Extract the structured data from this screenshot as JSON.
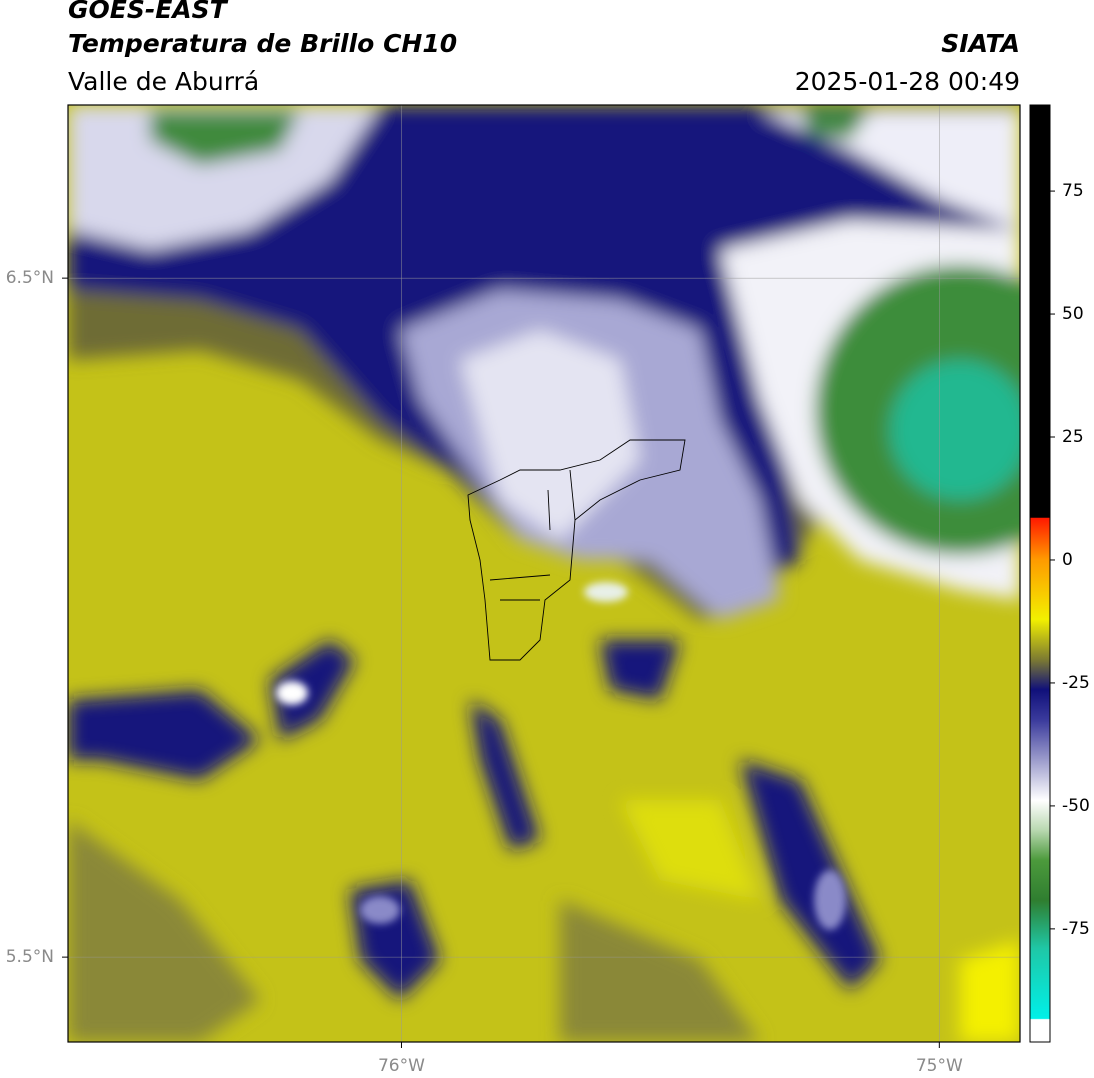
{
  "header": {
    "satellite": "GOES-EAST",
    "product": "Temperatura de Brillo CH10",
    "region": "Valle de Aburrá",
    "source": "SIATA",
    "datetime": "2025-01-28 00:49"
  },
  "map": {
    "xlim": [
      -76.62,
      -74.85
    ],
    "ylim": [
      5.375,
      6.755
    ],
    "xticks": [
      {
        "value": -76,
        "label": "76°W"
      },
      {
        "value": -75,
        "label": "75°W"
      }
    ],
    "yticks": [
      {
        "value": 6.5,
        "label": "6.5°N"
      },
      {
        "value": 5.5,
        "label": "5.5°N"
      }
    ],
    "grid": true
  },
  "colorbar": {
    "lim": [
      -98,
      92.5
    ],
    "ticks": [
      75,
      50,
      25,
      0,
      -25,
      -50,
      -75
    ]
  }
}
